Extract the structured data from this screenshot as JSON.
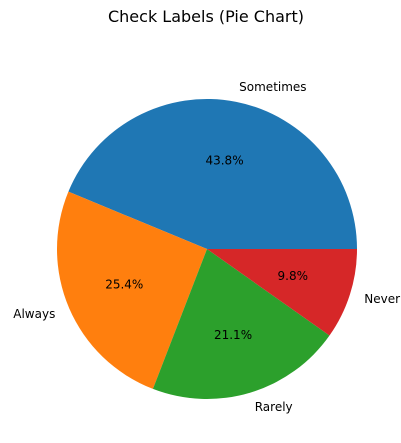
{
  "chart_data": {
    "type": "pie",
    "title": "Check Labels (Pie Chart)",
    "slices": [
      {
        "label": "Sometimes",
        "value": 43.8,
        "pct_label": "43.8%",
        "color": "#1f77b4"
      },
      {
        "label": "Always",
        "value": 25.4,
        "pct_label": "25.4%",
        "color": "#ff7f0e"
      },
      {
        "label": "Rarely",
        "value": 21.1,
        "pct_label": "21.1%",
        "color": "#2ca02c"
      },
      {
        "label": "Never",
        "value": 9.8,
        "pct_label": "9.8%",
        "color": "#d62728"
      }
    ],
    "start_angle_deg": 0,
    "direction": "counterclockwise"
  }
}
